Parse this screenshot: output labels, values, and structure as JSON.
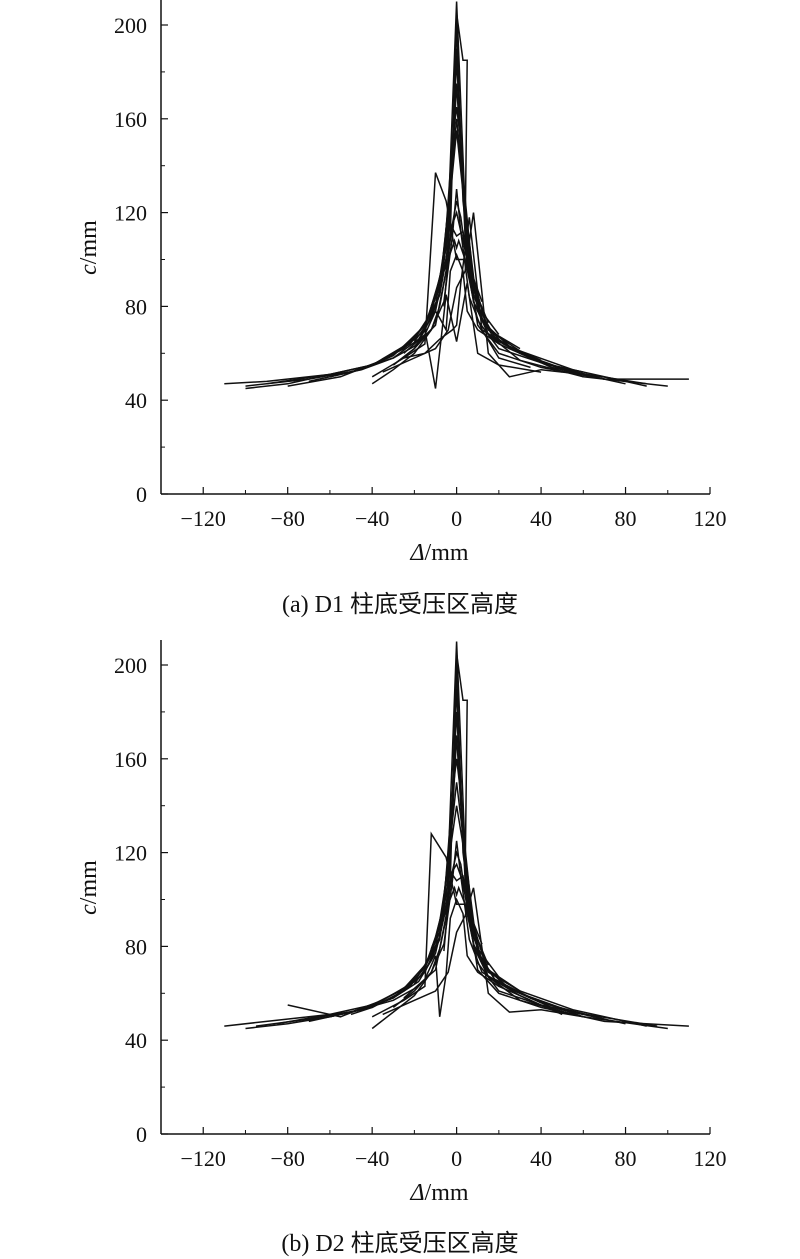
{
  "chart_data": [
    {
      "type": "line",
      "caption": "(a) D1 柱底受压区高度",
      "xlabel_var": "Δ",
      "xlabel_unit": "/mm",
      "ylabel_var": "c",
      "ylabel_unit": "/mm",
      "xlim": [
        -140,
        120
      ],
      "ylim": [
        0,
        200
      ],
      "xticks": [
        -120,
        -80,
        -40,
        0,
        40,
        80,
        120
      ],
      "yticks": [
        0,
        40,
        80,
        120,
        160,
        200
      ],
      "grid": false,
      "series": [
        {
          "x": [
            -110,
            -90,
            -70,
            -50,
            -30,
            -20,
            -10,
            -5,
            0,
            5,
            10,
            20,
            40,
            70,
            110
          ],
          "y": [
            47,
            48,
            50,
            52,
            58,
            63,
            72,
            95,
            210,
            100,
            72,
            60,
            54,
            49,
            49
          ]
        },
        {
          "x": [
            -100,
            -80,
            -60,
            -40,
            -25,
            -15,
            -8,
            -3,
            0,
            3,
            8,
            15,
            30,
            60,
            100
          ],
          "y": [
            45,
            47,
            51,
            55,
            62,
            70,
            85,
            120,
            200,
            125,
            85,
            68,
            57,
            50,
            46
          ]
        },
        {
          "x": [
            -100,
            -70,
            -45,
            -30,
            -18,
            -10,
            -4,
            0,
            4,
            10,
            18,
            30,
            55,
            90
          ],
          "y": [
            46,
            49,
            53,
            58,
            66,
            78,
            105,
            190,
            110,
            80,
            67,
            60,
            52,
            47
          ]
        },
        {
          "x": [
            -90,
            -60,
            -40,
            -25,
            -15,
            -8,
            -3,
            0,
            3,
            8,
            15,
            30,
            55,
            90
          ],
          "y": [
            47,
            51,
            55,
            63,
            72,
            88,
            130,
            185,
            135,
            90,
            70,
            61,
            53,
            46
          ]
        },
        {
          "x": [
            -80,
            -55,
            -38,
            -22,
            -14,
            -7,
            -2,
            0,
            2,
            7,
            14,
            25,
            45,
            80
          ],
          "y": [
            46,
            50,
            56,
            64,
            74,
            95,
            140,
            175,
            145,
            95,
            72,
            63,
            54,
            47
          ]
        },
        {
          "x": [
            -70,
            -50,
            -35,
            -20,
            -12,
            -6,
            -2,
            0,
            2,
            6,
            12,
            22,
            40,
            70
          ],
          "y": [
            48,
            52,
            57,
            66,
            77,
            100,
            150,
            165,
            150,
            98,
            74,
            64,
            56,
            49
          ]
        },
        {
          "x": [
            -60,
            -45,
            -30,
            -18,
            -10,
            -5,
            0,
            5,
            10,
            18,
            35,
            60
          ],
          "y": [
            50,
            53,
            59,
            69,
            80,
            110,
            160,
            115,
            78,
            66,
            58,
            50
          ]
        },
        {
          "x": [
            -50,
            -40,
            -25,
            -15,
            -8,
            -4,
            0,
            4,
            8,
            15,
            30,
            50
          ],
          "y": [
            52,
            55,
            62,
            72,
            85,
            118,
            155,
            120,
            82,
            68,
            60,
            52
          ]
        },
        {
          "x": [
            -40,
            -30,
            -20,
            -12,
            -6,
            -2,
            0,
            2,
            6,
            12,
            25,
            40
          ],
          "y": [
            47,
            53,
            60,
            70,
            82,
            110,
            130,
            112,
            84,
            70,
            63,
            57
          ]
        },
        {
          "x": [
            -30,
            -20,
            -12,
            -8,
            -5,
            -2,
            0,
            2,
            5,
            8,
            15,
            30
          ],
          "y": [
            55,
            62,
            70,
            80,
            95,
            115,
            125,
            118,
            98,
            82,
            70,
            62
          ]
        },
        {
          "x": [
            -20,
            -12,
            -8,
            -5,
            -2,
            0,
            2,
            5,
            10,
            20
          ],
          "y": [
            65,
            75,
            85,
            100,
            115,
            120,
            112,
            100,
            80,
            68
          ]
        },
        {
          "x": [
            -15,
            -10,
            -6,
            -3,
            0,
            3,
            6,
            10,
            15
          ],
          "y": [
            72,
            85,
            100,
            115,
            110,
            112,
            98,
            84,
            73
          ]
        },
        {
          "x": [
            -12,
            -8,
            -4,
            -1,
            0,
            1,
            4,
            8,
            12
          ],
          "y": [
            80,
            90,
            100,
            108,
            105,
            108,
            100,
            92,
            82
          ]
        },
        {
          "x": [
            -25,
            -15,
            -10,
            -8,
            -5,
            -3,
            0,
            3,
            5,
            10,
            20,
            35
          ],
          "y": [
            60,
            68,
            78,
            75,
            70,
            95,
            102,
            95,
            78,
            70,
            64,
            58
          ]
        },
        {
          "x": [
            -30,
            -20,
            -15,
            -10,
            -5,
            0,
            5,
            10,
            20,
            40
          ],
          "y": [
            55,
            62,
            70,
            45,
            85,
            65,
            90,
            60,
            55,
            52
          ]
        },
        {
          "x": [
            -35,
            -20,
            -10,
            -4,
            0,
            4,
            8,
            15,
            25,
            40,
            60
          ],
          "y": [
            52,
            58,
            62,
            70,
            88,
            95,
            120,
            60,
            50,
            53,
            51
          ]
        },
        {
          "x": [
            -25,
            -15,
            -8,
            -2,
            0,
            2,
            6,
            12,
            20,
            35
          ],
          "y": [
            58,
            60,
            66,
            70,
            72,
            90,
            118,
            70,
            58,
            54
          ]
        },
        {
          "x": [
            -40,
            -25,
            -15,
            -10,
            -5,
            0,
            4,
            10,
            20,
            40,
            60
          ],
          "y": [
            50,
            58,
            64,
            137,
            125,
            100,
            100,
            74,
            62,
            56,
            52
          ]
        },
        {
          "x": [
            -6,
            -3,
            0,
            3,
            5,
            4
          ],
          "y": [
            80,
            110,
            205,
            185,
            185,
            110
          ]
        }
      ]
    },
    {
      "type": "line",
      "caption": "(b) D2 柱底受压区高度",
      "xlabel_var": "Δ",
      "xlabel_unit": "/mm",
      "ylabel_var": "c",
      "ylabel_unit": "/mm",
      "xlim": [
        -140,
        120
      ],
      "ylim": [
        0,
        200
      ],
      "xticks": [
        -120,
        -80,
        -40,
        0,
        40,
        80,
        120
      ],
      "yticks": [
        0,
        40,
        80,
        120,
        160,
        200
      ],
      "grid": false,
      "series": [
        {
          "x": [
            -110,
            -90,
            -70,
            -50,
            -30,
            -20,
            -10,
            -5,
            0,
            5,
            10,
            20,
            40,
            70,
            110
          ],
          "y": [
            46,
            48,
            50,
            52,
            57,
            62,
            70,
            92,
            210,
            98,
            70,
            60,
            54,
            48,
            46
          ]
        },
        {
          "x": [
            -100,
            -80,
            -60,
            -40,
            -25,
            -15,
            -8,
            -3,
            0,
            3,
            8,
            15,
            30,
            60,
            100
          ],
          "y": [
            45,
            47,
            50,
            54,
            61,
            69,
            83,
            115,
            200,
            120,
            84,
            67,
            57,
            50,
            45
          ]
        },
        {
          "x": [
            -95,
            -70,
            -45,
            -30,
            -18,
            -10,
            -4,
            0,
            4,
            10,
            18,
            30,
            55,
            95
          ],
          "y": [
            46,
            49,
            53,
            58,
            65,
            77,
            100,
            190,
            108,
            78,
            66,
            60,
            52,
            46
          ]
        },
        {
          "x": [
            -85,
            -60,
            -40,
            -25,
            -15,
            -8,
            -3,
            0,
            3,
            8,
            15,
            30,
            55,
            90
          ],
          "y": [
            47,
            51,
            55,
            62,
            72,
            86,
            125,
            180,
            130,
            88,
            70,
            61,
            53,
            46
          ]
        },
        {
          "x": [
            -80,
            -55,
            -38,
            -22,
            -14,
            -7,
            -2,
            0,
            2,
            7,
            14,
            25,
            45,
            80
          ],
          "y": [
            55,
            50,
            56,
            63,
            73,
            92,
            135,
            170,
            140,
            92,
            71,
            62,
            54,
            47
          ]
        },
        {
          "x": [
            -70,
            -50,
            -35,
            -20,
            -12,
            -6,
            -2,
            0,
            2,
            6,
            12,
            22,
            40,
            70
          ],
          "y": [
            48,
            52,
            57,
            65,
            76,
            98,
            145,
            160,
            145,
            96,
            73,
            64,
            56,
            49
          ]
        },
        {
          "x": [
            -60,
            -45,
            -30,
            -18,
            -10,
            -5,
            0,
            5,
            10,
            18,
            35,
            60
          ],
          "y": [
            50,
            53,
            58,
            68,
            79,
            108,
            150,
            112,
            77,
            66,
            58,
            50
          ]
        },
        {
          "x": [
            -50,
            -40,
            -25,
            -15,
            -8,
            -4,
            0,
            4,
            8,
            15,
            30,
            50
          ],
          "y": [
            51,
            54,
            61,
            71,
            84,
            115,
            140,
            118,
            80,
            67,
            59,
            51
          ]
        },
        {
          "x": [
            -40,
            -30,
            -20,
            -12,
            -6,
            -2,
            0,
            2,
            6,
            12,
            25,
            40
          ],
          "y": [
            45,
            52,
            59,
            69,
            81,
            108,
            125,
            110,
            83,
            69,
            62,
            56
          ]
        },
        {
          "x": [
            -30,
            -20,
            -12,
            -8,
            -5,
            -2,
            0,
            2,
            5,
            8,
            15,
            30
          ],
          "y": [
            54,
            61,
            69,
            79,
            93,
            112,
            120,
            115,
            96,
            81,
            69,
            61
          ]
        },
        {
          "x": [
            -20,
            -12,
            -8,
            -5,
            -2,
            0,
            2,
            5,
            10,
            20
          ],
          "y": [
            64,
            74,
            84,
            98,
            112,
            115,
            110,
            98,
            79,
            67
          ]
        },
        {
          "x": [
            -15,
            -10,
            -6,
            -3,
            0,
            3,
            6,
            10,
            15
          ],
          "y": [
            71,
            84,
            98,
            112,
            108,
            110,
            96,
            83,
            72
          ]
        },
        {
          "x": [
            -12,
            -8,
            -4,
            -1,
            0,
            1,
            4,
            8,
            12
          ],
          "y": [
            79,
            88,
            98,
            105,
            102,
            105,
            98,
            90,
            81
          ]
        },
        {
          "x": [
            -25,
            -15,
            -10,
            -8,
            -5,
            -3,
            0,
            3,
            5,
            10,
            20,
            35
          ],
          "y": [
            58,
            66,
            76,
            50,
            68,
            92,
            100,
            94,
            76,
            69,
            63,
            57
          ]
        },
        {
          "x": [
            -35,
            -20,
            -10,
            -4,
            0,
            4,
            8,
            15,
            25,
            40,
            60
          ],
          "y": [
            51,
            57,
            61,
            69,
            86,
            93,
            105,
            60,
            52,
            53,
            50
          ]
        },
        {
          "x": [
            -40,
            -25,
            -15,
            -12,
            -5,
            0,
            4,
            10,
            20,
            40,
            60
          ],
          "y": [
            50,
            57,
            63,
            128,
            118,
            98,
            98,
            73,
            61,
            55,
            51
          ]
        },
        {
          "x": [
            -6,
            -3,
            0,
            3,
            5,
            4
          ],
          "y": [
            78,
            108,
            205,
            185,
            185,
            108
          ]
        }
      ]
    }
  ]
}
